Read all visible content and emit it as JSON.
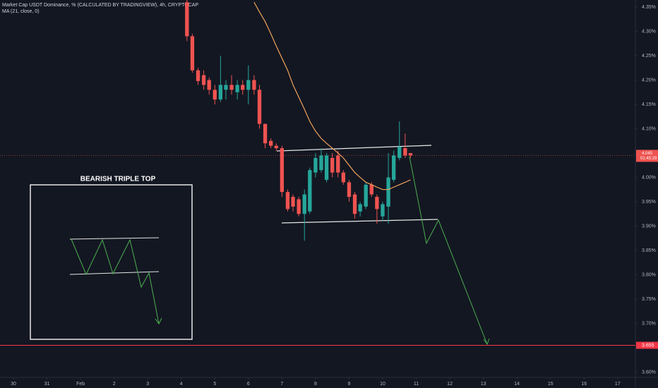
{
  "chart_data": {
    "type": "candlestick",
    "title": "Market Cap USDT Dominance, % (CALCULATED BY TRADINGVIEW), 4h, CRYPTOCAP",
    "up_color": "#26a69a",
    "down_color": "#ef5350",
    "x": [
      5.17,
      5.33,
      5.5,
      5.67,
      5.83,
      6,
      6.17,
      6.33,
      6.5,
      6.67,
      6.83,
      7,
      7.17,
      7.33,
      7.5,
      7.67,
      7.83,
      8,
      8.17,
      8.33,
      8.5,
      8.67,
      8.83,
      9,
      9.17,
      9.33,
      9.5,
      9.67,
      9.83,
      10,
      10.17,
      10.33,
      10.5,
      10.67,
      10.83,
      11,
      11.17,
      11.33,
      11.5,
      11.67,
      11.83
    ],
    "open": [
      4.36,
      4.29,
      4.22,
      4.21,
      4.2,
      4.18,
      4.16,
      4.18,
      4.19,
      4.175,
      4.19,
      4.18,
      4.2,
      4.18,
      4.11,
      4.075,
      4.065,
      4.06,
      3.97,
      3.96,
      3.955,
      3.925,
      3.93,
      4.01,
      4.015,
      3.995,
      4.04,
      4.045,
      4.01,
      3.99,
      3.965,
      3.93,
      3.94,
      3.985,
      3.96,
      3.92,
      3.94,
      3.995,
      4.04,
      4.06,
      4.05
    ],
    "high": [
      4.365,
      4.295,
      4.225,
      4.22,
      4.205,
      4.19,
      4.25,
      4.2,
      4.21,
      4.2,
      4.2,
      4.23,
      4.21,
      4.19,
      4.11,
      4.08,
      4.07,
      4.065,
      3.975,
      3.965,
      3.96,
      3.975,
      4.02,
      4.05,
      4.06,
      4.05,
      4.05,
      4.055,
      4.015,
      3.995,
      3.97,
      3.95,
      3.99,
      3.99,
      3.965,
      3.95,
      4.05,
      4.055,
      4.115,
      4.09,
      4.05
    ],
    "low": [
      4.28,
      4.215,
      4.19,
      4.18,
      4.17,
      4.15,
      4.155,
      4.16,
      4.17,
      4.16,
      4.17,
      4.15,
      4.17,
      4.1,
      4.06,
      4.06,
      4.055,
      3.96,
      3.93,
      3.93,
      3.92,
      3.87,
      3.925,
      4.0,
      4.01,
      3.99,
      4.0,
      4.0,
      3.985,
      3.95,
      3.915,
      3.92,
      3.935,
      3.96,
      3.905,
      3.91,
      3.905,
      3.99,
      4.035,
      4.04,
      4.04
    ],
    "close": [
      4.29,
      4.22,
      4.198,
      4.19,
      4.18,
      4.16,
      4.19,
      4.19,
      4.18,
      4.19,
      4.18,
      4.2,
      4.18,
      4.11,
      4.07,
      4.065,
      4.06,
      3.97,
      3.935,
      3.94,
      3.925,
      3.965,
      4.015,
      4.04,
      4.045,
      4.045,
      4.01,
      4.01,
      3.99,
      3.96,
      3.925,
      3.945,
      3.985,
      3.965,
      3.935,
      3.945,
      4.0,
      4.045,
      4.063,
      4.045,
      4.045
    ],
    "ma": {
      "name": "MA (21, close, 0)",
      "color": "#f0a35a",
      "values": [
        null,
        null,
        null,
        null,
        null,
        null,
        null,
        null,
        null,
        null,
        null,
        null,
        4.36,
        4.34,
        4.32,
        4.295,
        4.27,
        4.245,
        4.22,
        4.19,
        4.165,
        4.14,
        4.115,
        4.095,
        4.08,
        4.07,
        4.06,
        4.05,
        4.04,
        4.025,
        4.01,
        4.0,
        3.99,
        3.985,
        3.98,
        3.975,
        3.975,
        3.98,
        3.985,
        3.99,
        3.995
      ]
    },
    "xlim": [
      -0.4,
      18.53
    ],
    "xticks": [
      {
        "value": 0,
        "label": "30"
      },
      {
        "value": 1,
        "label": "31"
      },
      {
        "value": 2,
        "label": "Feb"
      },
      {
        "value": 3,
        "label": "2"
      },
      {
        "value": 4,
        "label": "3"
      },
      {
        "value": 5,
        "label": "4"
      },
      {
        "value": 6,
        "label": "5"
      },
      {
        "value": 7,
        "label": "6"
      },
      {
        "value": 8,
        "label": "7"
      },
      {
        "value": 9,
        "label": "8"
      },
      {
        "value": 10,
        "label": "9"
      },
      {
        "value": 11,
        "label": "10"
      },
      {
        "value": 12,
        "label": "11"
      },
      {
        "value": 13,
        "label": "12"
      },
      {
        "value": 14,
        "label": "13"
      },
      {
        "value": 15,
        "label": "14"
      },
      {
        "value": 16,
        "label": "15"
      },
      {
        "value": 17,
        "label": "16"
      },
      {
        "value": 18,
        "label": "17"
      }
    ],
    "ylim": [
      3.589,
      4.3645
    ],
    "yticks": [
      {
        "value": 4.35,
        "label": "4.35%"
      },
      {
        "value": 4.3,
        "label": "4.30%"
      },
      {
        "value": 4.25,
        "label": "4.25%"
      },
      {
        "value": 4.2,
        "label": "4.20%"
      },
      {
        "value": 4.15,
        "label": "4.15%"
      },
      {
        "value": 4.1,
        "label": "4.10%"
      },
      {
        "value": 4.0,
        "label": "4.00%"
      },
      {
        "value": 3.95,
        "label": "3.95%"
      },
      {
        "value": 3.9,
        "label": "3.90%"
      },
      {
        "value": 3.85,
        "label": "3.85%"
      },
      {
        "value": 3.8,
        "label": "3.80%"
      },
      {
        "value": 3.75,
        "label": "3.75%"
      },
      {
        "value": 3.7,
        "label": "3.70%"
      },
      {
        "value": 3.6,
        "label": "3.60%"
      }
    ],
    "grid": false,
    "current_price": 4.045,
    "countdown": "01:45:29",
    "hline": 3.655,
    "annotation": "BEARISH TRIPLE TOP"
  }
}
